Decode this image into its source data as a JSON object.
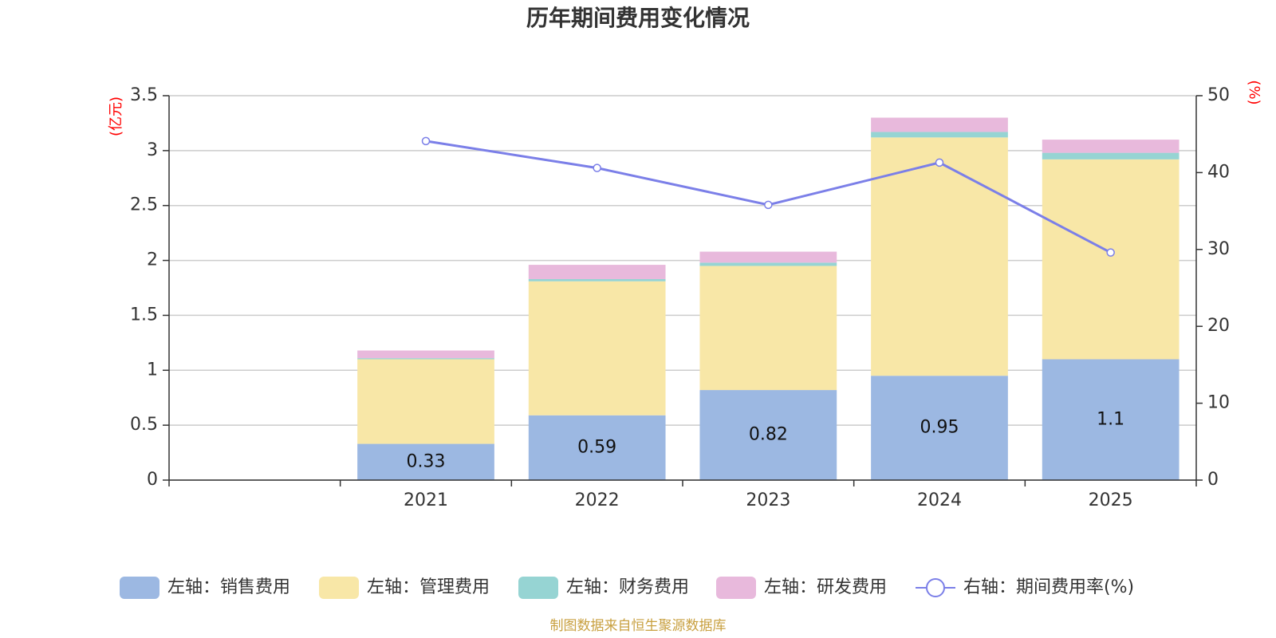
{
  "chart_data": {
    "type": "bar",
    "title": "历年期间费用变化情况",
    "categories": [
      "",
      "2021",
      "2022",
      "2023",
      "2024",
      "2025"
    ],
    "left_axis": {
      "unit": "(亿元)",
      "ylim": [
        0,
        3.5
      ],
      "ticks": [
        "0",
        "0.5",
        "1",
        "1.5",
        "2",
        "2.5",
        "3",
        "3.5"
      ],
      "tick_values": [
        0,
        0.5,
        1,
        1.5,
        2,
        2.5,
        3,
        3.5
      ]
    },
    "right_axis": {
      "unit": "(%)",
      "ylim": [
        0,
        50
      ],
      "ticks": [
        "0",
        "10",
        "20",
        "30",
        "40",
        "50"
      ],
      "tick_values": [
        0,
        10,
        20,
        30,
        40,
        50
      ]
    },
    "series": [
      {
        "name": "左轴：销售费用",
        "kind": "bar",
        "color": "#9cb8e2",
        "values": [
          null,
          0.33,
          0.59,
          0.82,
          0.95,
          1.1
        ],
        "labels": [
          "",
          "0.33",
          "0.59",
          "0.82",
          "0.95",
          "1.1"
        ]
      },
      {
        "name": "左轴：管理费用",
        "kind": "bar",
        "color": "#f8e7a7",
        "values": [
          null,
          0.77,
          1.22,
          1.13,
          2.17,
          1.82
        ]
      },
      {
        "name": "左轴：财务费用",
        "kind": "bar",
        "color": "#96d4d3",
        "values": [
          null,
          0.01,
          0.02,
          0.03,
          0.05,
          0.06
        ]
      },
      {
        "name": "左轴：研发费用",
        "kind": "bar",
        "color": "#e8b9dc",
        "values": [
          null,
          0.07,
          0.13,
          0.1,
          0.13,
          0.12
        ]
      },
      {
        "name": "右轴：期间费用率(%)",
        "kind": "line",
        "color": "#7b7fe8",
        "values": [
          null,
          44.1,
          40.6,
          35.8,
          41.3,
          29.6
        ]
      }
    ],
    "source": "制图数据来自恒生聚源数据库"
  }
}
